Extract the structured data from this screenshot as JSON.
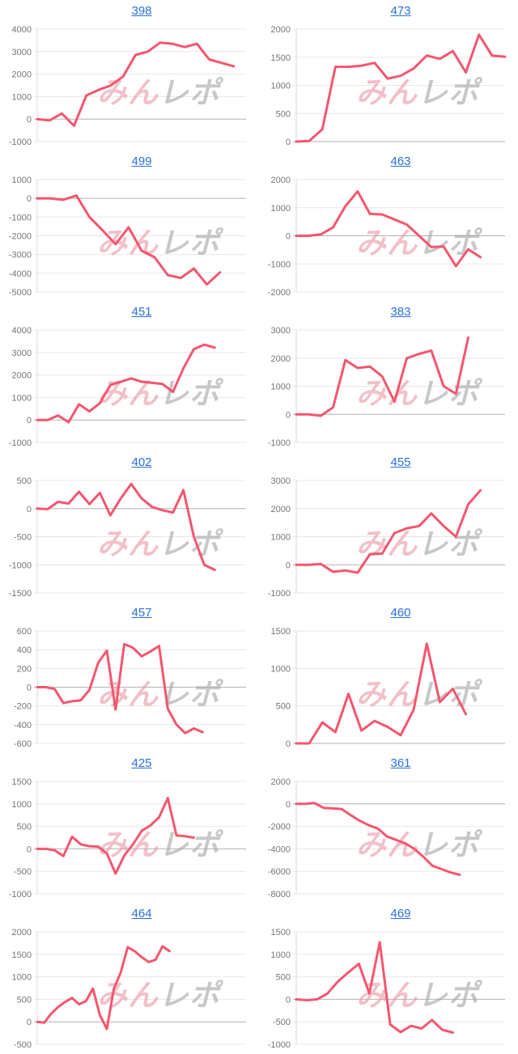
{
  "page": {
    "background": "#ffffff"
  },
  "style": {
    "line_color": "#f4566e",
    "grid_color": "#e7e7e7",
    "zero_line_color": "#b3b3b3",
    "axis_line_color": "#dadada",
    "axis_label_color": "#757575",
    "title_link_color": "#2b70d9"
  },
  "watermark": {
    "pink_text": "みん",
    "gray_text": "レポ",
    "pink_color": "#eb9aa8",
    "gray_color": "#a8a8a8"
  },
  "chart_data": [
    {
      "type": "line",
      "title": "398",
      "ylabel": "",
      "ylim": [
        -1000,
        4000
      ],
      "ytick_step": 1000,
      "x_slots": 18,
      "values": [
        0,
        -60,
        250,
        -300,
        1050,
        1300,
        1500,
        1900,
        2850,
        3000,
        3400,
        3350,
        3200,
        3350,
        2650,
        2500,
        2350
      ]
    },
    {
      "type": "line",
      "title": "473",
      "ylabel": "",
      "ylim": [
        0,
        2000
      ],
      "ytick_step": 500,
      "x_slots": 17,
      "values": [
        0,
        10,
        220,
        1330,
        1330,
        1350,
        1400,
        1120,
        1170,
        1300,
        1530,
        1470,
        1610,
        1230,
        1900,
        1530,
        1510
      ]
    },
    {
      "type": "line",
      "title": "499",
      "ylabel": "",
      "ylim": [
        -5000,
        1000
      ],
      "ytick_step": 1000,
      "x_slots": 17,
      "values": [
        0,
        0,
        -80,
        150,
        -1000,
        -1700,
        -2450,
        -1550,
        -2800,
        -3150,
        -4100,
        -4250,
        -3750,
        -4600,
        -3950
      ]
    },
    {
      "type": "line",
      "title": "463",
      "ylabel": "",
      "ylim": [
        -2000,
        2000
      ],
      "ytick_step": 1000,
      "x_slots": 18,
      "values": [
        0,
        0,
        50,
        300,
        1050,
        1580,
        780,
        760,
        580,
        400,
        0,
        -400,
        -380,
        -1080,
        -480,
        -760
      ]
    },
    {
      "type": "line",
      "title": "451",
      "ylabel": "",
      "ylim": [
        -1000,
        4000
      ],
      "ytick_step": 1000,
      "x_slots": 21,
      "values": [
        0,
        0,
        200,
        -100,
        700,
        380,
        750,
        1550,
        1700,
        1850,
        1700,
        1650,
        1600,
        1250,
        2300,
        3150,
        3350,
        3220
      ]
    },
    {
      "type": "line",
      "title": "383",
      "ylabel": "",
      "ylim": [
        -1000,
        3000
      ],
      "ytick_step": 1000,
      "x_slots": 18,
      "values": [
        0,
        0,
        -50,
        250,
        1930,
        1650,
        1700,
        1350,
        450,
        2000,
        2150,
        2270,
        1000,
        730,
        2730
      ]
    },
    {
      "type": "line",
      "title": "402",
      "ylabel": "",
      "ylim": [
        -1500,
        500
      ],
      "ytick_step": 500,
      "x_slots": 21,
      "values": [
        0,
        -10,
        120,
        90,
        300,
        80,
        280,
        -120,
        180,
        440,
        180,
        30,
        -30,
        -70,
        330,
        -500,
        -1000,
        -1090
      ]
    },
    {
      "type": "line",
      "title": "455",
      "ylabel": "",
      "ylim": [
        -1000,
        3000
      ],
      "ytick_step": 1000,
      "x_slots": 18,
      "values": [
        0,
        0,
        30,
        -250,
        -200,
        -280,
        380,
        400,
        1130,
        1300,
        1380,
        1830,
        1380,
        1000,
        2150,
        2650
      ]
    },
    {
      "type": "line",
      "title": "457",
      "ylabel": "",
      "ylim": [
        -600,
        600
      ],
      "ytick_step": 200,
      "x_slots": 25,
      "values": [
        0,
        0,
        -20,
        -170,
        -150,
        -140,
        -30,
        260,
        390,
        -240,
        460,
        420,
        330,
        380,
        440,
        -230,
        -400,
        -490,
        -440,
        -480
      ]
    },
    {
      "type": "line",
      "title": "460",
      "ylabel": "",
      "ylim": [
        0,
        1500
      ],
      "ytick_step": 500,
      "x_slots": 17,
      "values": [
        0,
        0,
        280,
        150,
        660,
        170,
        300,
        220,
        110,
        450,
        1330,
        550,
        730,
        390
      ]
    },
    {
      "type": "line",
      "title": "425",
      "ylabel": "",
      "ylim": [
        -1000,
        1500
      ],
      "ytick_step": 500,
      "x_slots": 25,
      "values": [
        0,
        0,
        -30,
        -160,
        270,
        100,
        60,
        50,
        -100,
        -550,
        -150,
        100,
        400,
        520,
        700,
        1130,
        300,
        280,
        250
      ]
    },
    {
      "type": "line",
      "title": "361",
      "ylabel": "",
      "ylim": [
        -8000,
        2000
      ],
      "ytick_step": 2000,
      "x_slots": 24,
      "values": [
        0,
        0,
        80,
        -350,
        -400,
        -450,
        -1000,
        -1500,
        -1900,
        -2200,
        -2900,
        -3200,
        -3500,
        -4000,
        -4700,
        -5500,
        -5800,
        -6100,
        -6300
      ]
    },
    {
      "type": "line",
      "title": "464",
      "ylabel": "",
      "ylim": [
        -500,
        2000
      ],
      "ytick_step": 500,
      "x_slots": 31,
      "values": [
        0,
        -20,
        180,
        330,
        440,
        530,
        390,
        460,
        740,
        150,
        -160,
        730,
        1100,
        1660,
        1570,
        1440,
        1330,
        1380,
        1680,
        1570
      ]
    },
    {
      "type": "line",
      "title": "469",
      "ylabel": "",
      "ylim": [
        -1000,
        1500
      ],
      "ytick_step": 500,
      "x_slots": 21,
      "values": [
        0,
        -20,
        0,
        130,
        400,
        600,
        790,
        130,
        1270,
        -560,
        -730,
        -590,
        -650,
        -460,
        -680,
        -740
      ]
    }
  ]
}
